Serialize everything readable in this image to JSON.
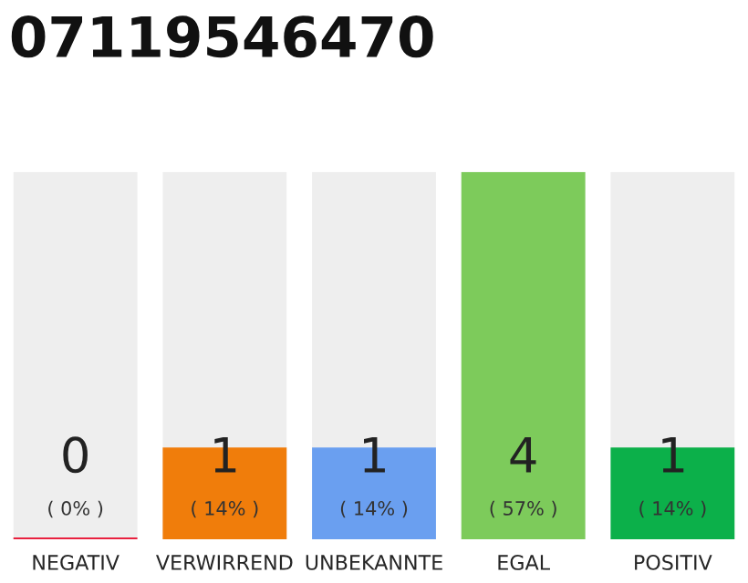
{
  "chart_data": {
    "type": "bar",
    "title": "07119546470",
    "categories": [
      "NEGATIV",
      "VERWIRREND",
      "UNBEKANNTE",
      "EGAL",
      "POSITIV"
    ],
    "values": [
      0,
      1,
      1,
      4,
      1
    ],
    "colors": [
      "#e8213f",
      "#f07d0b",
      "#6a9ff0",
      "#7dcb5b",
      "#0cb04a"
    ],
    "value_labels": [
      "0\n( 0% )",
      "1\n( 14% )",
      "1\n( 14% )",
      "4\n( 57% )",
      "1\n( 14% )"
    ],
    "ylim": [
      0,
      4
    ],
    "tick_labels": "x",
    "grid": false,
    "legend": false
  }
}
